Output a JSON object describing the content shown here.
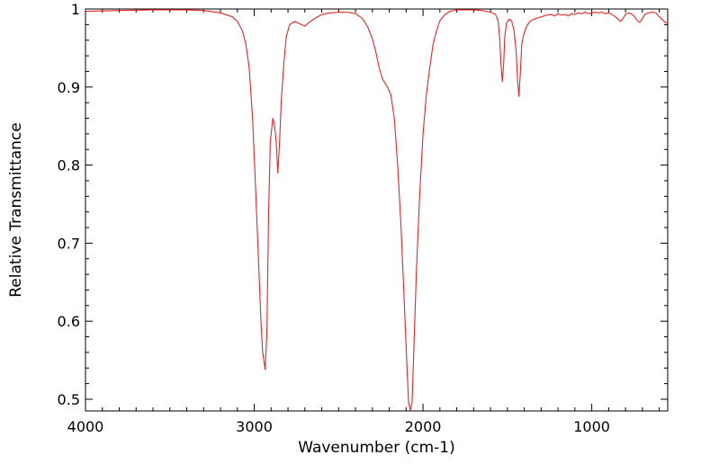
{
  "chart_data": {
    "type": "line",
    "title": "",
    "xlabel": "Wavenumber (cm-1)",
    "ylabel": "Relative Transmittance",
    "xlim": [
      4000,
      550
    ],
    "ylim": [
      0.485,
      1.0
    ],
    "x_reversed": true,
    "grid": false,
    "legend": "none",
    "x_ticks": [
      4000,
      3000,
      2000,
      1000
    ],
    "x_tick_labels": [
      "4000",
      "3000",
      "2000",
      "1000"
    ],
    "y_ticks": [
      0.5,
      0.6,
      0.7,
      0.8,
      0.9,
      1.0
    ],
    "y_tick_labels": [
      "0.5",
      "0.6",
      "0.7",
      "0.8",
      "0.9",
      "1"
    ],
    "series": [
      {
        "color": "#ee2222",
        "points": [
          [
            4000,
            0.997
          ],
          [
            3800,
            0.998
          ],
          [
            3600,
            0.999
          ],
          [
            3400,
            0.999
          ],
          [
            3300,
            0.998
          ],
          [
            3200,
            0.995
          ],
          [
            3130,
            0.99
          ],
          [
            3100,
            0.984
          ],
          [
            3070,
            0.972
          ],
          [
            3050,
            0.955
          ],
          [
            3030,
            0.925
          ],
          [
            3010,
            0.86
          ],
          [
            2990,
            0.76
          ],
          [
            2975,
            0.68
          ],
          [
            2960,
            0.6
          ],
          [
            2950,
            0.56
          ],
          [
            2935,
            0.538
          ],
          [
            2925,
            0.585
          ],
          [
            2915,
            0.74
          ],
          [
            2905,
            0.83
          ],
          [
            2890,
            0.86
          ],
          [
            2880,
            0.852
          ],
          [
            2870,
            0.83
          ],
          [
            2860,
            0.79
          ],
          [
            2850,
            0.83
          ],
          [
            2840,
            0.88
          ],
          [
            2825,
            0.93
          ],
          [
            2810,
            0.965
          ],
          [
            2790,
            0.98
          ],
          [
            2760,
            0.984
          ],
          [
            2720,
            0.98
          ],
          [
            2700,
            0.978
          ],
          [
            2680,
            0.982
          ],
          [
            2640,
            0.988
          ],
          [
            2600,
            0.993
          ],
          [
            2550,
            0.995
          ],
          [
            2500,
            0.996
          ],
          [
            2450,
            0.996
          ],
          [
            2400,
            0.994
          ],
          [
            2360,
            0.988
          ],
          [
            2330,
            0.978
          ],
          [
            2300,
            0.962
          ],
          [
            2280,
            0.945
          ],
          [
            2260,
            0.925
          ],
          [
            2240,
            0.91
          ],
          [
            2225,
            0.905
          ],
          [
            2210,
            0.9
          ],
          [
            2190,
            0.89
          ],
          [
            2170,
            0.86
          ],
          [
            2150,
            0.8
          ],
          [
            2130,
            0.72
          ],
          [
            2110,
            0.62
          ],
          [
            2095,
            0.54
          ],
          [
            2085,
            0.495
          ],
          [
            2075,
            0.486
          ],
          [
            2065,
            0.495
          ],
          [
            2055,
            0.56
          ],
          [
            2040,
            0.66
          ],
          [
            2020,
            0.76
          ],
          [
            2000,
            0.84
          ],
          [
            1980,
            0.89
          ],
          [
            1960,
            0.925
          ],
          [
            1940,
            0.955
          ],
          [
            1920,
            0.972
          ],
          [
            1900,
            0.985
          ],
          [
            1870,
            0.993
          ],
          [
            1840,
            0.997
          ],
          [
            1800,
            0.999
          ],
          [
            1700,
            0.999
          ],
          [
            1650,
            0.998
          ],
          [
            1600,
            0.996
          ],
          [
            1570,
            0.993
          ],
          [
            1555,
            0.985
          ],
          [
            1545,
            0.96
          ],
          [
            1538,
            0.93
          ],
          [
            1530,
            0.907
          ],
          [
            1522,
            0.93
          ],
          [
            1515,
            0.965
          ],
          [
            1505,
            0.982
          ],
          [
            1490,
            0.987
          ],
          [
            1475,
            0.985
          ],
          [
            1460,
            0.972
          ],
          [
            1448,
            0.945
          ],
          [
            1440,
            0.91
          ],
          [
            1432,
            0.888
          ],
          [
            1424,
            0.915
          ],
          [
            1415,
            0.955
          ],
          [
            1400,
            0.97
          ],
          [
            1380,
            0.98
          ],
          [
            1360,
            0.985
          ],
          [
            1330,
            0.988
          ],
          [
            1300,
            0.99
          ],
          [
            1270,
            0.992
          ],
          [
            1240,
            0.993
          ],
          [
            1220,
            0.991
          ],
          [
            1200,
            0.994
          ],
          [
            1180,
            0.992
          ],
          [
            1160,
            0.993
          ],
          [
            1140,
            0.991
          ],
          [
            1120,
            0.994
          ],
          [
            1100,
            0.993
          ],
          [
            1080,
            0.995
          ],
          [
            1060,
            0.994
          ],
          [
            1040,
            0.996
          ],
          [
            1020,
            0.994
          ],
          [
            1000,
            0.995
          ],
          [
            980,
            0.996
          ],
          [
            960,
            0.995
          ],
          [
            940,
            0.996
          ],
          [
            920,
            0.994
          ],
          [
            900,
            0.995
          ],
          [
            880,
            0.993
          ],
          [
            860,
            0.99
          ],
          [
            845,
            0.987
          ],
          [
            830,
            0.984
          ],
          [
            815,
            0.988
          ],
          [
            800,
            0.993
          ],
          [
            780,
            0.995
          ],
          [
            760,
            0.993
          ],
          [
            745,
            0.99
          ],
          [
            730,
            0.985
          ],
          [
            715,
            0.983
          ],
          [
            700,
            0.988
          ],
          [
            685,
            0.993
          ],
          [
            665,
            0.995
          ],
          [
            640,
            0.996
          ],
          [
            620,
            0.995
          ],
          [
            600,
            0.99
          ],
          [
            580,
            0.986
          ],
          [
            565,
            0.983
          ],
          [
            550,
            0.982
          ]
        ]
      }
    ]
  }
}
